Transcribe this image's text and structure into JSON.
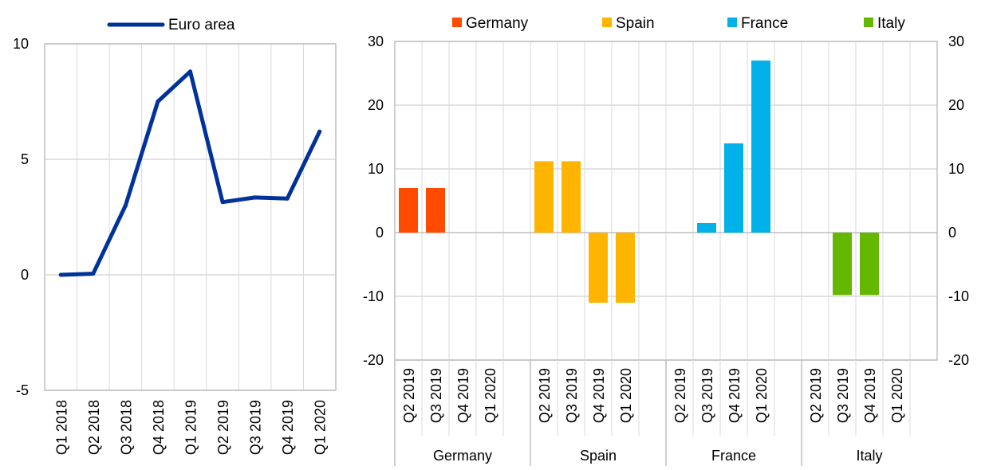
{
  "chart_data": [
    {
      "type": "line",
      "categories": [
        "Q1 2018",
        "Q2 2018",
        "Q3 2018",
        "Q4 2018",
        "Q1 2019",
        "Q2 2019",
        "Q3 2019",
        "Q4 2019",
        "Q1 2020"
      ],
      "series": [
        {
          "name": "Euro area",
          "values": [
            0.0,
            0.05,
            3.0,
            7.5,
            8.8,
            3.15,
            3.35,
            3.3,
            6.2
          ]
        }
      ],
      "ylim": [
        -5,
        10
      ],
      "yticks": [
        -5,
        0,
        5,
        10
      ],
      "grid": true,
      "legend": "top"
    },
    {
      "type": "bar",
      "groups": [
        "Germany",
        "Spain",
        "France",
        "Italy"
      ],
      "quarters": [
        "Q2 2019",
        "Q3 2019",
        "Q4 2019",
        "Q1 2020"
      ],
      "series": [
        {
          "name": "Germany",
          "values": [
            7.0,
            7.0,
            0,
            0
          ]
        },
        {
          "name": "Spain",
          "values": [
            11.2,
            11.2,
            -11.0,
            -11.0
          ]
        },
        {
          "name": "France",
          "values": [
            0,
            1.5,
            14.0,
            27.0
          ]
        },
        {
          "name": "Italy",
          "values": [
            0,
            -9.8,
            -9.8,
            0
          ]
        }
      ],
      "ylim": [
        -20,
        30
      ],
      "yticks": [
        -20,
        -10,
        0,
        10,
        20,
        30
      ],
      "grid": true,
      "legend": "top"
    }
  ],
  "colors": {
    "line": "#003299",
    "Germany": "#ff4b00",
    "Spain": "#ffb400",
    "France": "#00b1ea",
    "Italy": "#65b800",
    "grid": "#d9d9d9",
    "axis": "#bfbfbf"
  }
}
